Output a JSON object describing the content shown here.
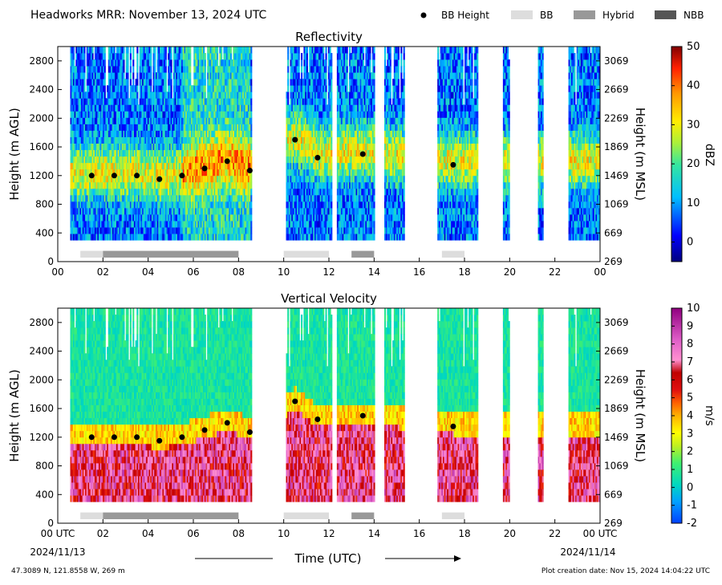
{
  "header": {
    "title": "Headworks MRR:  November 13, 2024 UTC"
  },
  "legend": {
    "items": [
      {
        "label": "BB Height",
        "kind": "dot",
        "color": "#000000"
      },
      {
        "label": "BB",
        "kind": "patch",
        "color": "#dddddd"
      },
      {
        "label": "Hybrid",
        "kind": "patch",
        "color": "#999999"
      },
      {
        "label": "NBB",
        "kind": "patch",
        "color": "#555555"
      }
    ]
  },
  "footer": {
    "location": "47.3089 N, 121.8558 W, 269 m",
    "created": "Plot creation date: Nov 15, 2024 14:04:22 UTC",
    "xlabel": "Time (UTC)",
    "date_left": "2024/11/13",
    "date_right": "2024/11/14"
  },
  "chart_data": [
    {
      "type": "heatmap",
      "title": "Reflectivity",
      "ylabel": "Height (m AGL)",
      "ylabel_right": "Height (m MSL)",
      "colorbar_label": "dBZ",
      "xlim": [
        0,
        24
      ],
      "ylim": [
        0,
        3000
      ],
      "x_ticks": [
        "00",
        "02",
        "04",
        "06",
        "08",
        "10",
        "12",
        "14",
        "16",
        "18",
        "20",
        "22",
        "00"
      ],
      "y_ticks": [
        0,
        400,
        800,
        1200,
        1600,
        2000,
        2400,
        2800
      ],
      "y_ticks_right": [
        "269",
        "669",
        "1069",
        "1469",
        "1869",
        "2269",
        "2669",
        "3069"
      ],
      "color_range": [
        -5,
        50
      ],
      "colorbar_ticks": [
        "0",
        "10",
        "20",
        "30",
        "40",
        "50"
      ],
      "colorbar_tick_values": [
        0,
        10,
        20,
        30,
        40,
        50
      ],
      "data_height_range": [
        300,
        3000
      ],
      "precip_periods": [
        [
          0.55,
          8.55
        ],
        [
          10.1,
          12.1
        ],
        [
          12.35,
          14.0
        ],
        [
          14.45,
          15.3
        ],
        [
          16.8,
          18.55
        ],
        [
          19.7,
          20.0
        ],
        [
          21.25,
          21.45
        ],
        [
          22.6,
          24.0
        ]
      ],
      "bb_height_points": [
        [
          1.5,
          1200
        ],
        [
          2.5,
          1200
        ],
        [
          3.5,
          1200
        ],
        [
          4.5,
          1150
        ],
        [
          5.5,
          1200
        ],
        [
          6.5,
          1300
        ],
        [
          7.5,
          1400
        ],
        [
          8.5,
          1270
        ],
        [
          10.5,
          1700
        ],
        [
          11.5,
          1450
        ],
        [
          13.5,
          1500
        ],
        [
          17.5,
          1350
        ]
      ],
      "bb_type_bars": [
        {
          "start": 1.0,
          "end": 2.0,
          "type": "BB"
        },
        {
          "start": 2.0,
          "end": 8.0,
          "type": "Hybrid"
        },
        {
          "start": 10.0,
          "end": 12.0,
          "type": "BB"
        },
        {
          "start": 13.0,
          "end": 14.0,
          "type": "Hybrid"
        },
        {
          "start": 17.0,
          "end": 18.0,
          "type": "BB"
        }
      ]
    },
    {
      "type": "heatmap",
      "title": "Vertical Velocity",
      "ylabel": "Height (m AGL)",
      "ylabel_right": "Height (m MSL)",
      "colorbar_label": "m/s",
      "xlim": [
        0,
        24
      ],
      "ylim": [
        0,
        3000
      ],
      "x_ticks": [
        "00 UTC",
        "02",
        "04",
        "06",
        "08",
        "10",
        "12",
        "14",
        "16",
        "18",
        "20",
        "22",
        "00 UTC"
      ],
      "y_ticks": [
        0,
        400,
        800,
        1200,
        1600,
        2000,
        2400,
        2800
      ],
      "y_ticks_right": [
        "269",
        "669",
        "1069",
        "1469",
        "1869",
        "2269",
        "2669",
        "3069"
      ],
      "color_range": [
        -2,
        10
      ],
      "colorbar_ticks": [
        "-2",
        "-1",
        "0",
        "1",
        "2",
        "3",
        "4",
        "5",
        "6",
        "7",
        "8",
        "9",
        "10"
      ],
      "colorbar_tick_values": [
        -2,
        -1,
        0,
        1,
        2,
        3,
        4,
        5,
        6,
        7,
        8,
        9,
        10
      ],
      "data_height_range": [
        300,
        3000
      ],
      "precip_periods": [
        [
          0.55,
          8.55
        ],
        [
          10.1,
          12.1
        ],
        [
          12.35,
          14.0
        ],
        [
          14.45,
          15.3
        ],
        [
          16.8,
          18.55
        ],
        [
          19.7,
          20.0
        ],
        [
          21.25,
          21.45
        ],
        [
          22.6,
          24.0
        ]
      ],
      "bb_height_points": [
        [
          1.5,
          1200
        ],
        [
          2.5,
          1200
        ],
        [
          3.5,
          1200
        ],
        [
          4.5,
          1150
        ],
        [
          5.5,
          1200
        ],
        [
          6.5,
          1300
        ],
        [
          7.5,
          1400
        ],
        [
          8.5,
          1270
        ],
        [
          10.5,
          1700
        ],
        [
          11.5,
          1450
        ],
        [
          13.5,
          1500
        ],
        [
          17.5,
          1350
        ]
      ],
      "bb_type_bars": [
        {
          "start": 1.0,
          "end": 2.0,
          "type": "BB"
        },
        {
          "start": 2.0,
          "end": 8.0,
          "type": "Hybrid"
        },
        {
          "start": 10.0,
          "end": 12.0,
          "type": "BB"
        },
        {
          "start": 13.0,
          "end": 14.0,
          "type": "Hybrid"
        },
        {
          "start": 17.0,
          "end": 18.0,
          "type": "BB"
        }
      ]
    }
  ]
}
